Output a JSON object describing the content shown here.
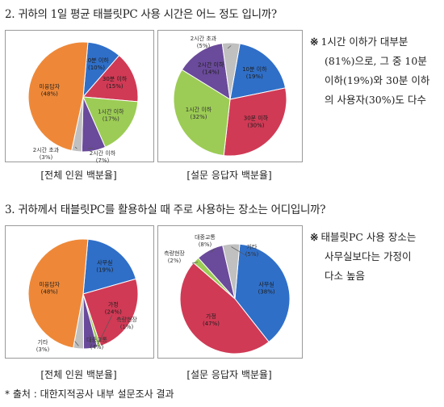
{
  "q1": {
    "title": "2. 귀하의 1일 평균 태블릿PC 사용 시간은 어느 정도 입니까?",
    "caption_left": "[전체 인원 백분율]",
    "caption_right": "[설문 응답자 백분율]",
    "note_mark": "※",
    "note_lines": [
      "1시간 이하가 대부분",
      "(81%)으로, 그 중 10분",
      "이하(19%)와 30분 이하",
      "의 사용자(30%)도 다수"
    ]
  },
  "q2": {
    "title": "3. 귀하께서 태블릿PC를 활용하실 때 주로 사용하는 장소는 어디입니까?",
    "caption_left": "[전체 인원 백분율]",
    "caption_right": "[설문 응답자 백분율]",
    "note_mark": "※",
    "note_lines": [
      "태블릿PC 사용 장소는",
      "사무실보다는 가정이",
      "다소 높음"
    ]
  },
  "footer": "* 출처 : 대한지적공사 내부 설문조사 결과",
  "colors": {
    "blue": "#2f6fc8",
    "red": "#d03a55",
    "green": "#9ccc55",
    "purple": "#6a4a9a",
    "orange": "#ee8838",
    "gray": "#c0c0c0"
  },
  "chart_data": [
    {
      "type": "pie",
      "title": "[전체 인원 백분율]",
      "slices": [
        {
          "label": "10분 이하",
          "value": 10,
          "pct_label": "(10%)",
          "color": "blue"
        },
        {
          "label": "30분 이하",
          "value": 15,
          "pct_label": "(15%)",
          "color": "red"
        },
        {
          "label": "1시간 이하",
          "value": 17,
          "pct_label": "(17%)",
          "color": "green"
        },
        {
          "label": "2시간 이하",
          "value": 7,
          "pct_label": "(7%)",
          "color": "purple"
        },
        {
          "label": "2시간 초과",
          "value": 3,
          "pct_label": "(3%)",
          "color": "gray"
        },
        {
          "label": "미응답자",
          "value": 48,
          "pct_label": "(48%)",
          "color": "orange"
        }
      ]
    },
    {
      "type": "pie",
      "title": "[설문 응답자 백분율]",
      "slices": [
        {
          "label": "10분 이하",
          "value": 19,
          "pct_label": "(19%)",
          "color": "blue"
        },
        {
          "label": "30분 이하",
          "value": 30,
          "pct_label": "(30%)",
          "color": "red"
        },
        {
          "label": "1시간 이하",
          "value": 32,
          "pct_label": "(32%)",
          "color": "green"
        },
        {
          "label": "2시간 이하",
          "value": 14,
          "pct_label": "(14%)",
          "color": "purple"
        },
        {
          "label": "2시간 초과",
          "value": 5,
          "pct_label": "(5%)",
          "color": "gray"
        }
      ]
    },
    {
      "type": "pie",
      "title": "[전체 인원 백분율]",
      "slices": [
        {
          "label": "사무실",
          "value": 19,
          "pct_label": "(19%)",
          "color": "blue"
        },
        {
          "label": "가정",
          "value": 24,
          "pct_label": "(24%)",
          "color": "red"
        },
        {
          "label": "측량현장",
          "value": 1,
          "pct_label": "(1%)",
          "color": "green"
        },
        {
          "label": "대중교통",
          "value": 4,
          "pct_label": "(4%)",
          "color": "purple"
        },
        {
          "label": "기타",
          "value": 3,
          "pct_label": "(3%)",
          "color": "gray"
        },
        {
          "label": "미응답자",
          "value": 48,
          "pct_label": "(48%)",
          "color": "orange"
        }
      ]
    },
    {
      "type": "pie",
      "title": "[설문 응답자 백분율]",
      "slices": [
        {
          "label": "사무실",
          "value": 38,
          "pct_label": "(38%)",
          "color": "blue"
        },
        {
          "label": "가정",
          "value": 47,
          "pct_label": "(47%)",
          "color": "red"
        },
        {
          "label": "측량현장",
          "value": 2,
          "pct_label": "(2%)",
          "color": "green"
        },
        {
          "label": "대중교통",
          "value": 8,
          "pct_label": "(8%)",
          "color": "purple"
        },
        {
          "label": "기타",
          "value": 5,
          "pct_label": "(5%)",
          "color": "gray"
        }
      ]
    }
  ]
}
